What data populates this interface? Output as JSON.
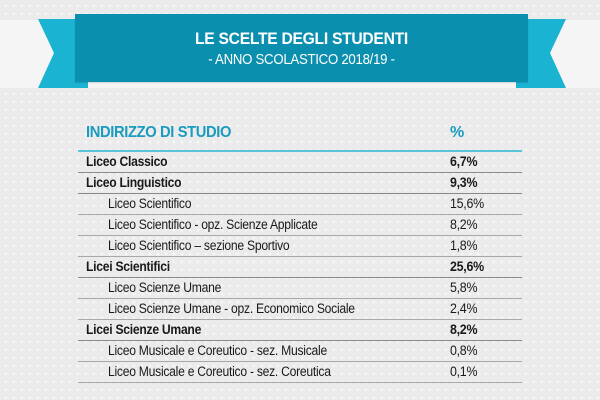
{
  "banner": {
    "title": "LE SCELTE DEGLI STUDENTI",
    "subtitle": "- ANNO SCOLASTICO 2018/19 -",
    "color": "#0b8fae",
    "tail_color": "#1ab4d2"
  },
  "table": {
    "header": {
      "name": "INDIRIZZO DI STUDIO",
      "pct": "%"
    },
    "rows": [
      {
        "name": "Liceo Classico",
        "pct": "6,7%",
        "bold": true,
        "indent": false
      },
      {
        "name": "Liceo Linguistico",
        "pct": "9,3%",
        "bold": true,
        "indent": false
      },
      {
        "name": "Liceo Scientifico",
        "pct": "15,6%",
        "bold": false,
        "indent": true
      },
      {
        "name": "Liceo Scientifico - opz. Scienze Applicate",
        "pct": "8,2%",
        "bold": false,
        "indent": true
      },
      {
        "name": "Liceo Scientifico – sezione Sportivo",
        "pct": "1,8%",
        "bold": false,
        "indent": true
      },
      {
        "name": "Licei Scientifici",
        "pct": "25,6%",
        "bold": true,
        "indent": false
      },
      {
        "name": "Liceo Scienze Umane",
        "pct": "5,8%",
        "bold": false,
        "indent": true
      },
      {
        "name": "Liceo Scienze Umane - opz. Economico Sociale",
        "pct": "2,4%",
        "bold": false,
        "indent": true
      },
      {
        "name": "Licei Scienze Umane",
        "pct": "8,2%",
        "bold": true,
        "indent": false
      },
      {
        "name": "Liceo Musicale e Coreutico - sez. Musicale",
        "pct": "0,8%",
        "bold": false,
        "indent": true
      },
      {
        "name": "Liceo Musicale e Coreutico - sez. Coreutica",
        "pct": "0,1%",
        "bold": false,
        "indent": true
      }
    ]
  }
}
